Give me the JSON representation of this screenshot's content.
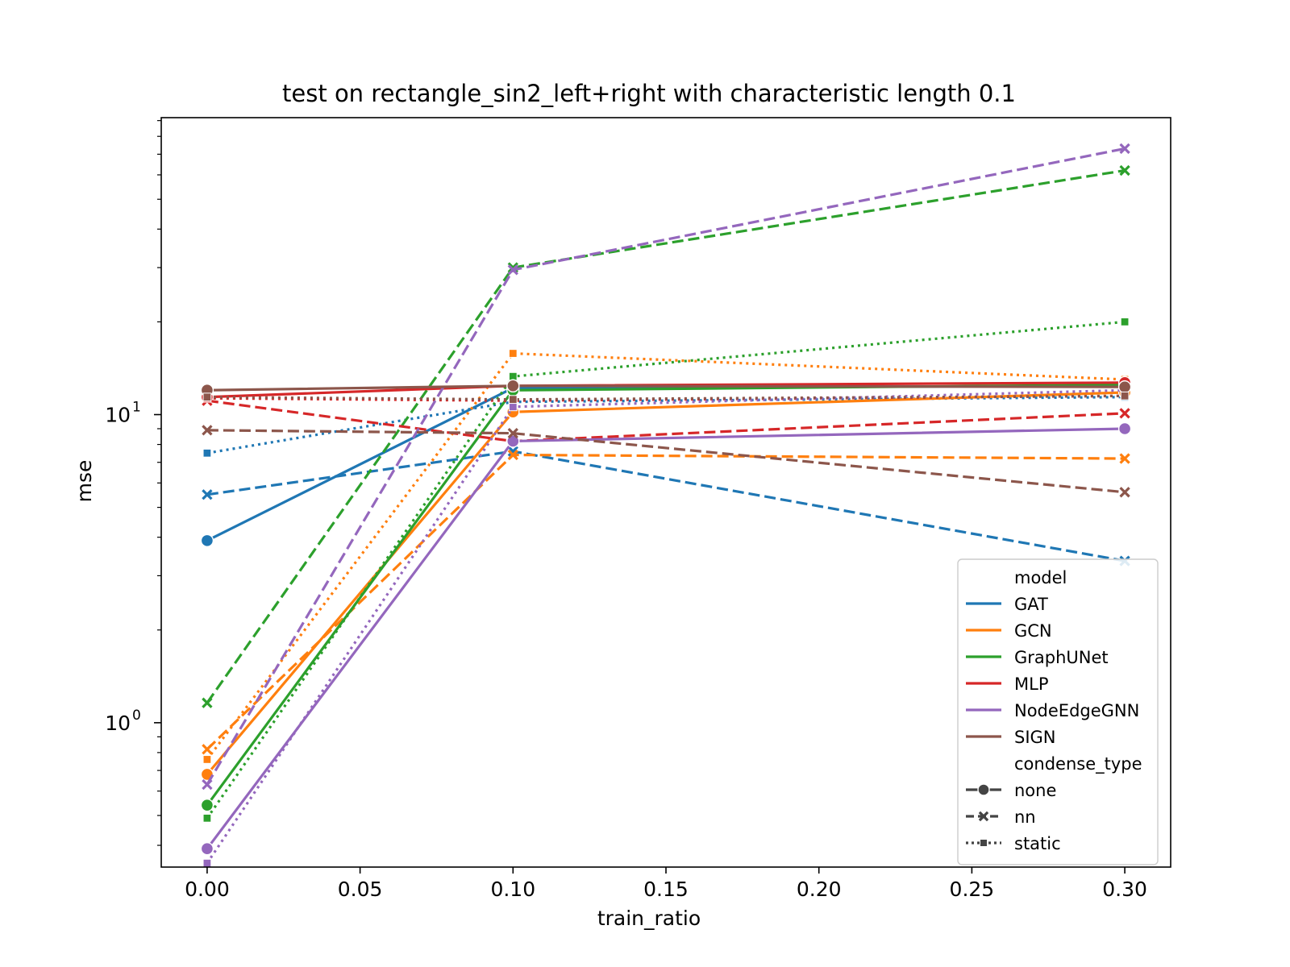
{
  "chart_data": {
    "type": "line",
    "title": "test on rectangle_sin2_left+right with characteristic length 0.1",
    "xlabel": "train_ratio",
    "ylabel": "mse",
    "yscale": "log",
    "x": [
      0.0,
      0.1,
      0.3
    ],
    "xlim": [
      -0.015,
      0.315
    ],
    "ylim": [
      0.34,
      92
    ],
    "xticks": [
      0.0,
      0.05,
      0.1,
      0.15,
      0.2,
      0.25,
      0.3
    ],
    "xtick_labels": [
      "0.00",
      "0.05",
      "0.10",
      "0.15",
      "0.20",
      "0.25",
      "0.30"
    ],
    "yticks": [
      1,
      10
    ],
    "ytick_labels": [
      {
        "base": "10",
        "exp": "0"
      },
      {
        "base": "10",
        "exp": "1"
      }
    ],
    "legend": {
      "placement": "lower-right",
      "model_title": "model",
      "condense_title": "condense_type",
      "models": [
        {
          "name": "GAT",
          "color": "#1f77b4"
        },
        {
          "name": "GCN",
          "color": "#ff7f0e"
        },
        {
          "name": "GraphUNet",
          "color": "#2ca02c"
        },
        {
          "name": "MLP",
          "color": "#d62728"
        },
        {
          "name": "NodeEdgeGNN",
          "color": "#9467bd"
        },
        {
          "name": "SIGN",
          "color": "#8c564b"
        }
      ],
      "styles": [
        {
          "name": "none",
          "dash": "solid",
          "marker": "circle"
        },
        {
          "name": "nn",
          "dash": "dashed",
          "marker": "x"
        },
        {
          "name": "static",
          "dash": "dotted",
          "marker": "square"
        }
      ],
      "style_color": "#444444"
    },
    "series": [
      {
        "model": "GAT",
        "condense": "none",
        "values": [
          3.9,
          12.2,
          12.4
        ]
      },
      {
        "model": "GAT",
        "condense": "nn",
        "values": [
          5.5,
          7.6,
          3.35
        ]
      },
      {
        "model": "GAT",
        "condense": "static",
        "values": [
          7.5,
          11.0,
          11.4
        ]
      },
      {
        "model": "GCN",
        "condense": "none",
        "values": [
          0.68,
          10.2,
          11.8
        ]
      },
      {
        "model": "GCN",
        "condense": "nn",
        "values": [
          0.82,
          7.4,
          7.2
        ]
      },
      {
        "model": "GCN",
        "condense": "static",
        "values": [
          0.76,
          15.8,
          13.0
        ]
      },
      {
        "model": "GraphUNet",
        "condense": "none",
        "values": [
          0.54,
          12.0,
          12.5
        ]
      },
      {
        "model": "GraphUNet",
        "condense": "nn",
        "values": [
          1.16,
          30.0,
          62.0
        ]
      },
      {
        "model": "GraphUNet",
        "condense": "static",
        "values": [
          0.49,
          13.3,
          20.0
        ]
      },
      {
        "model": "MLP",
        "condense": "none",
        "values": [
          11.4,
          12.4,
          12.7
        ]
      },
      {
        "model": "MLP",
        "condense": "nn",
        "values": [
          11.1,
          8.2,
          10.1
        ]
      },
      {
        "model": "MLP",
        "condense": "static",
        "values": [
          11.3,
          11.1,
          11.5
        ]
      },
      {
        "model": "NodeEdgeGNN",
        "condense": "none",
        "values": [
          0.39,
          8.2,
          9.0
        ]
      },
      {
        "model": "NodeEdgeGNN",
        "condense": "nn",
        "values": [
          0.63,
          29.5,
          73.0
        ]
      },
      {
        "model": "NodeEdgeGNN",
        "condense": "static",
        "values": [
          0.35,
          10.6,
          12.0
        ]
      },
      {
        "model": "SIGN",
        "condense": "none",
        "values": [
          12.0,
          12.4,
          12.3
        ]
      },
      {
        "model": "SIGN",
        "condense": "nn",
        "values": [
          8.9,
          8.7,
          5.6
        ]
      },
      {
        "model": "SIGN",
        "condense": "static",
        "values": [
          11.4,
          11.2,
          11.5
        ]
      }
    ]
  }
}
